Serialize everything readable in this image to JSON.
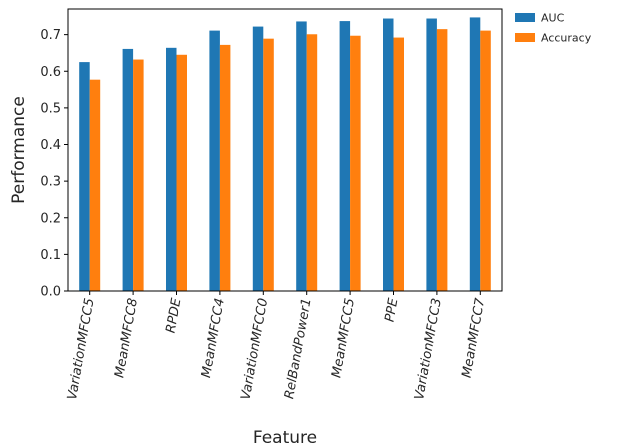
{
  "chart_data": {
    "type": "bar",
    "xlabel": "Feature",
    "ylabel": "Performance",
    "categories": [
      "VariationMFCC5",
      "MeanMFCC8",
      "RPDE",
      "MeanMFCC4",
      "VariationMFCC0",
      "RelBandPower1",
      "MeanMFCC5",
      "PPE",
      "VariationMFCC3",
      "MeanMFCC7"
    ],
    "series": [
      {
        "name": "AUC",
        "color": "#1f77b4",
        "values": [
          0.625,
          0.661,
          0.664,
          0.711,
          0.722,
          0.736,
          0.737,
          0.744,
          0.744,
          0.747
        ]
      },
      {
        "name": "Accuracy",
        "color": "#ff7f0e",
        "values": [
          0.577,
          0.632,
          0.645,
          0.672,
          0.689,
          0.701,
          0.697,
          0.692,
          0.715,
          0.711
        ]
      }
    ],
    "ylim": [
      0,
      0.77
    ],
    "yticks": [
      0.0,
      0.1,
      0.2,
      0.3,
      0.4,
      0.5,
      0.6,
      0.7
    ],
    "ytick_labels": [
      "0.0",
      "0.1",
      "0.2",
      "0.3",
      "0.4",
      "0.5",
      "0.6",
      "0.7"
    ],
    "legend_position": "outside-top-right",
    "grid": false
  }
}
